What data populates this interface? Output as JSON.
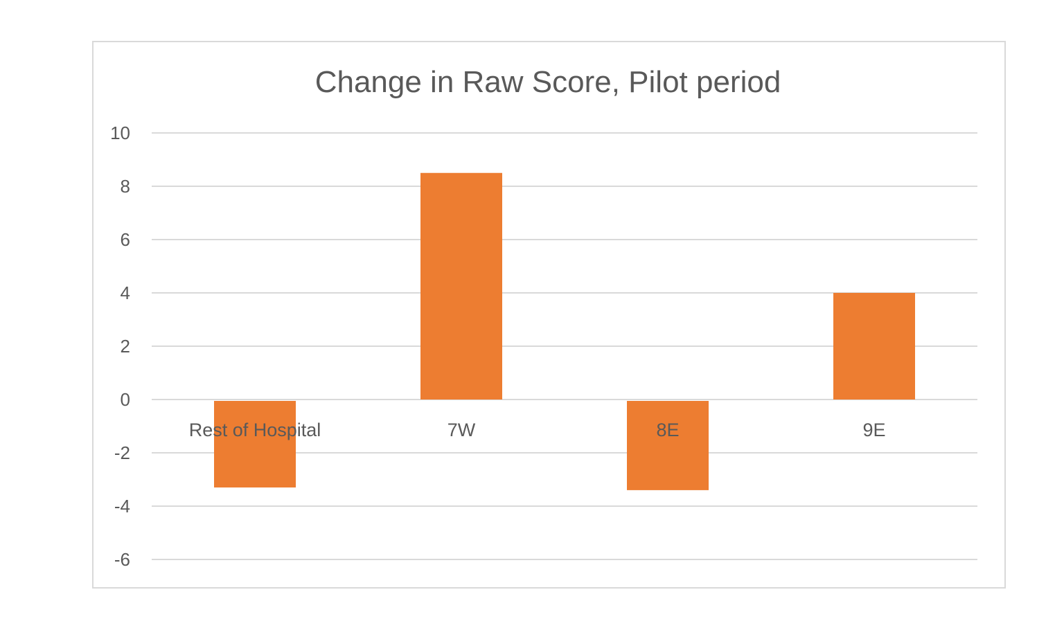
{
  "chart_data": {
    "type": "bar",
    "title": "Change in Raw Score, Pilot period",
    "xlabel": "",
    "ylabel": "",
    "categories": [
      "Rest of Hospital",
      "7W",
      "8E",
      "9E"
    ],
    "values": [
      -3.3,
      8.5,
      -3.4,
      4.0
    ],
    "ylim": [
      -6,
      10
    ],
    "yticks": [
      10,
      8,
      6,
      4,
      2,
      0,
      -2,
      -4,
      -6
    ],
    "grid": true,
    "legend": "none",
    "bar_color": "#ed7d31"
  }
}
